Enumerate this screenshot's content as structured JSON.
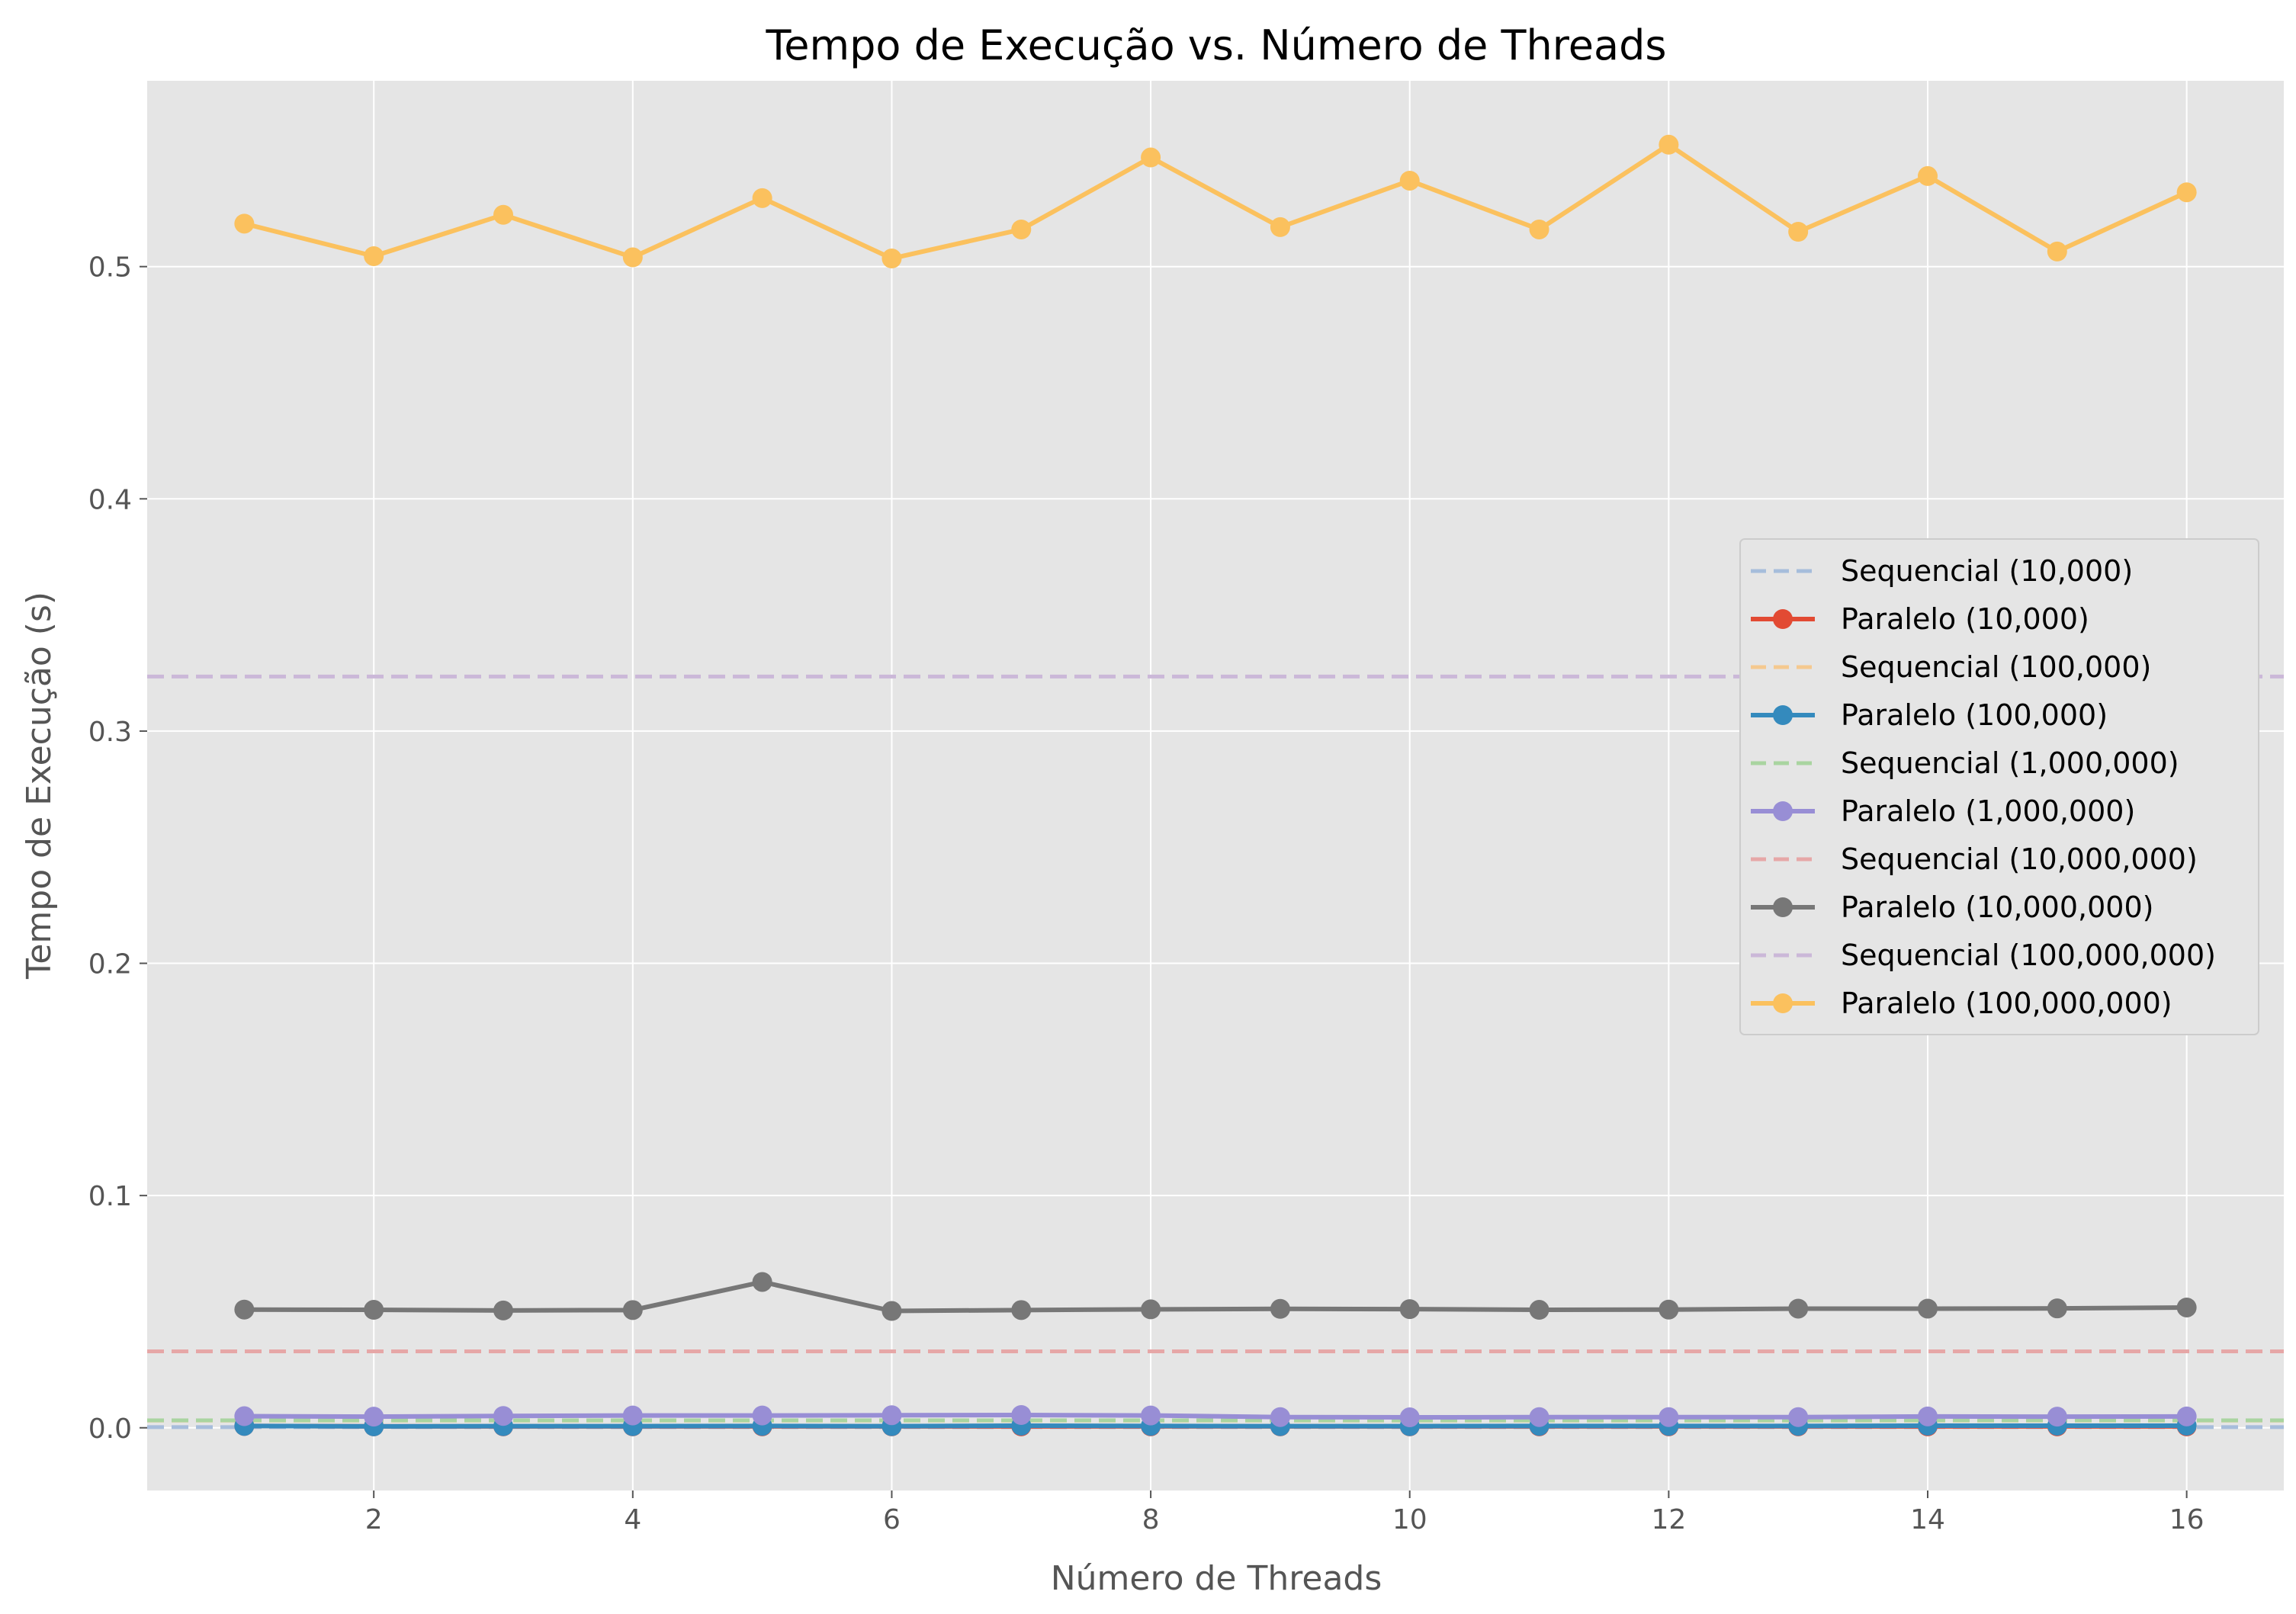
{
  "chart_data": {
    "type": "line",
    "title": "Tempo de Execução vs. Número de Threads",
    "xlabel": "Número de Threads",
    "ylabel": "Tempo de Execução (s)",
    "xlim": [
      0.25,
      16.75
    ],
    "ylim": [
      -0.027,
      0.58
    ],
    "xticks": [
      2,
      4,
      6,
      8,
      10,
      12,
      14,
      16
    ],
    "yticks": [
      0.0,
      0.1,
      0.2,
      0.3,
      0.4,
      0.5
    ],
    "xtick_labels": [
      "2",
      "4",
      "6",
      "8",
      "10",
      "12",
      "14",
      "16"
    ],
    "ytick_labels": [
      "0.0",
      "0.1",
      "0.2",
      "0.3",
      "0.4",
      "0.5"
    ],
    "grid": true,
    "legend_position": "center-right",
    "background_color": "#e5e5e5",
    "x": [
      1,
      2,
      3,
      4,
      5,
      6,
      7,
      8,
      9,
      10,
      11,
      12,
      13,
      14,
      15,
      16
    ],
    "series": [
      {
        "name": "Sequencial (10,000)",
        "kind": "hline",
        "value": 0.0003,
        "color": "#a6bddb",
        "style": "dashed"
      },
      {
        "name": "Paralelo (10,000)",
        "kind": "line",
        "color": "#e24a33",
        "values": [
          0.0008,
          0.0006,
          0.0006,
          0.0006,
          0.0006,
          0.0006,
          0.0006,
          0.0006,
          0.0006,
          0.0006,
          0.0006,
          0.0006,
          0.0006,
          0.0006,
          0.0006,
          0.0006
        ]
      },
      {
        "name": "Sequencial (100,000)",
        "kind": "hline",
        "value": 0.0031,
        "color": "#f5c98f",
        "style": "dashed"
      },
      {
        "name": "Paralelo (100,000)",
        "kind": "line",
        "color": "#348abd",
        "values": [
          0.0008,
          0.0006,
          0.0007,
          0.0007,
          0.0008,
          0.0007,
          0.0009,
          0.0008,
          0.0007,
          0.0007,
          0.0008,
          0.0008,
          0.0008,
          0.0009,
          0.0009,
          0.0009
        ]
      },
      {
        "name": "Sequencial (1,000,000)",
        "kind": "hline",
        "value": 0.0032,
        "color": "#a9d4a0",
        "style": "dashed"
      },
      {
        "name": "Paralelo (1,000,000)",
        "kind": "line",
        "color": "#988ed5",
        "values": [
          0.005,
          0.0048,
          0.0051,
          0.0053,
          0.0053,
          0.0054,
          0.0055,
          0.0053,
          0.0046,
          0.0045,
          0.0046,
          0.0046,
          0.0046,
          0.0049,
          0.0048,
          0.0049
        ]
      },
      {
        "name": "Sequencial (10,000,000)",
        "kind": "hline",
        "value": 0.0329,
        "color": "#e6a7a7",
        "style": "dashed"
      },
      {
        "name": "Paralelo (10,000,000)",
        "kind": "line",
        "color": "#777777",
        "values": [
          0.0509,
          0.0508,
          0.0505,
          0.0507,
          0.0628,
          0.0503,
          0.0507,
          0.051,
          0.0512,
          0.0511,
          0.0508,
          0.0509,
          0.0513,
          0.0513,
          0.0514,
          0.0518
        ]
      },
      {
        "name": "Sequencial (100,000,000)",
        "kind": "hline",
        "value": 0.3235,
        "color": "#cbb8d8",
        "style": "dashed"
      },
      {
        "name": "Paralelo (100,000,000)",
        "kind": "line",
        "color": "#fbc15e",
        "values": [
          0.5185,
          0.5045,
          0.5223,
          0.504,
          0.5295,
          0.5035,
          0.516,
          0.547,
          0.517,
          0.537,
          0.516,
          0.5525,
          0.515,
          0.539,
          0.5065,
          0.532
        ]
      }
    ]
  }
}
